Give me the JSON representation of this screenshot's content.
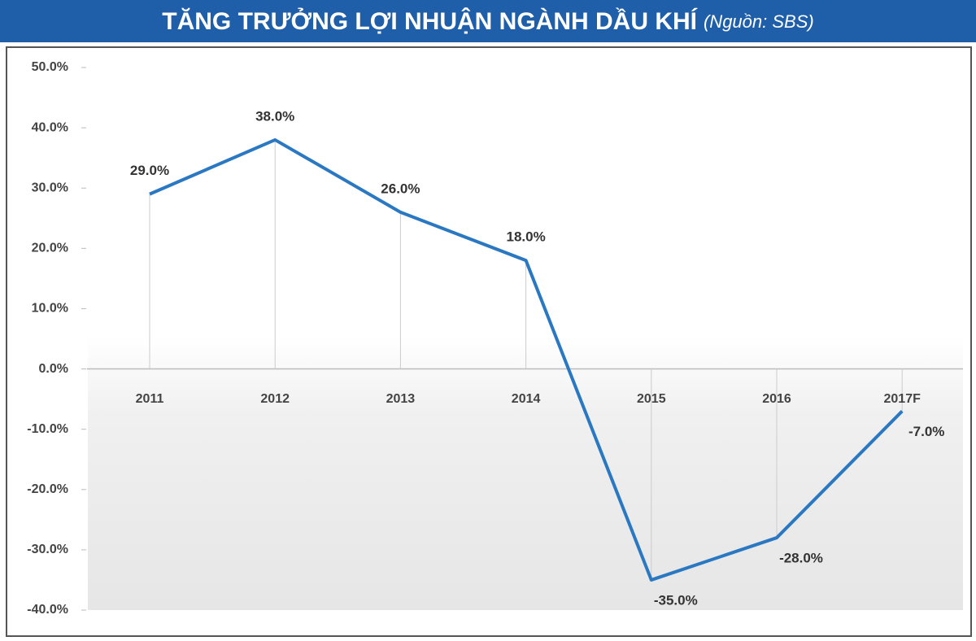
{
  "chart_data": {
    "type": "line",
    "title": "TĂNG TRƯỞNG LỢI NHUẬN NGÀNH DẦU KHÍ",
    "subtitle": "(Nguồn: SBS)",
    "categories": [
      "2011",
      "2012",
      "2013",
      "2014",
      "2015",
      "2016",
      "2017F"
    ],
    "values": [
      29,
      38,
      26,
      18,
      -35,
      -28,
      -7
    ],
    "value_labels": [
      "29.0%",
      "38.0%",
      "26.0%",
      "18.0%",
      "-35.0%",
      "-28.0%",
      "-7.0%"
    ],
    "color": "#2a78c2",
    "ylim": [
      -40,
      50
    ],
    "yticks": [
      {
        "value": 50,
        "label": "50.0%"
      },
      {
        "value": 40,
        "label": "40.0%"
      },
      {
        "value": 30,
        "label": "30.0%"
      },
      {
        "value": 20,
        "label": "20.0%"
      },
      {
        "value": 10,
        "label": "10.0%"
      },
      {
        "value": 0,
        "label": "0.0%"
      },
      {
        "value": -10,
        "label": "-10.0%"
      },
      {
        "value": -20,
        "label": "-20.0%"
      },
      {
        "value": -30,
        "label": "-30.0%"
      },
      {
        "value": -40,
        "label": "-40.0%"
      }
    ],
    "grid": false
  }
}
